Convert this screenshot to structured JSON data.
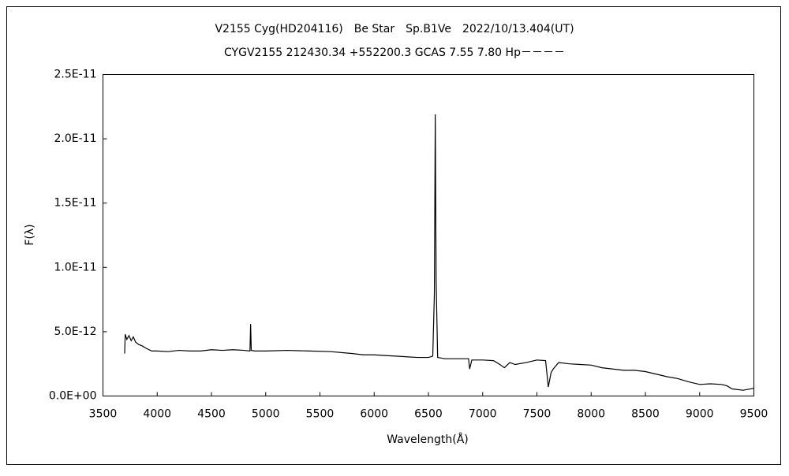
{
  "chart_data": {
    "type": "line",
    "title": "V2155 Cyg(HD204116)　Be Star　Sp.B1Ve　2022/10/13.404(UT)",
    "subtitle": "CYGV2155 212430.34 +552200.3 GCAS 7.55 7.80 Hp－－－－",
    "x_label": "Wavelength(Å)",
    "y_label": "F(λ)",
    "color": "#000000",
    "x": [
      3700,
      3705,
      3720,
      3740,
      3760,
      3780,
      3800,
      3830,
      3860,
      3900,
      3950,
      4000,
      4100,
      4200,
      4300,
      4400,
      4500,
      4600,
      4700,
      4800,
      4855,
      4861,
      4867,
      4900,
      5000,
      5200,
      5400,
      5600,
      5800,
      5900,
      6000,
      6100,
      6200,
      6300,
      6400,
      6500,
      6540,
      6555,
      6563,
      6571,
      6585,
      6650,
      6800,
      6870,
      6880,
      6900,
      7000,
      7100,
      7150,
      7200,
      7250,
      7300,
      7400,
      7500,
      7580,
      7605,
      7630,
      7650,
      7700,
      7800,
      7900,
      8000,
      8100,
      8200,
      8300,
      8400,
      8500,
      8600,
      8700,
      8800,
      8900,
      9000,
      9100,
      9200,
      9250,
      9300,
      9400,
      9500
    ],
    "values": [
      3.3e-12,
      4.8e-12,
      4.4e-12,
      4.7e-12,
      4.3e-12,
      4.6e-12,
      4.2e-12,
      4e-12,
      3.9e-12,
      3.7e-12,
      3.5e-12,
      3.5e-12,
      3.45e-12,
      3.55e-12,
      3.5e-12,
      3.5e-12,
      3.6e-12,
      3.55e-12,
      3.6e-12,
      3.55e-12,
      3.5e-12,
      5.6e-12,
      3.55e-12,
      3.5e-12,
      3.5e-12,
      3.55e-12,
      3.5e-12,
      3.45e-12,
      3.3e-12,
      3.2e-12,
      3.2e-12,
      3.15e-12,
      3.1e-12,
      3.05e-12,
      3e-12,
      3e-12,
      3.1e-12,
      8e-12,
      2.19e-11,
      9e-12,
      3e-12,
      2.9e-12,
      2.9e-12,
      2.9e-12,
      2.1e-12,
      2.8e-12,
      2.8e-12,
      2.75e-12,
      2.5e-12,
      2.2e-12,
      2.6e-12,
      2.45e-12,
      2.6e-12,
      2.8e-12,
      2.75e-12,
      7e-13,
      1.8e-12,
      2.1e-12,
      2.6e-12,
      2.5e-12,
      2.45e-12,
      2.4e-12,
      2.2e-12,
      2.1e-12,
      2e-12,
      2e-12,
      1.9e-12,
      1.7e-12,
      1.5e-12,
      1.35e-12,
      1.1e-12,
      9e-13,
      9.5e-13,
      9e-13,
      8e-13,
      5.5e-13,
      4.5e-13,
      6e-13
    ],
    "xlim": [
      3500,
      9500
    ],
    "xticks": [
      3500,
      4000,
      4500,
      5000,
      5500,
      6000,
      6500,
      7000,
      7500,
      8000,
      8500,
      9000,
      9500
    ],
    "ylim": [
      0,
      2.5e-11
    ],
    "yticks": [
      {
        "value": 0,
        "label": "0.0E+00"
      },
      {
        "value": 5e-12,
        "label": "5.0E-12"
      },
      {
        "value": 1e-11,
        "label": "1.0E-11"
      },
      {
        "value": 1.5e-11,
        "label": "1.5E-11"
      },
      {
        "value": 2e-11,
        "label": "2.0E-11"
      },
      {
        "value": 2.5e-11,
        "label": "2.5E-11"
      }
    ]
  }
}
